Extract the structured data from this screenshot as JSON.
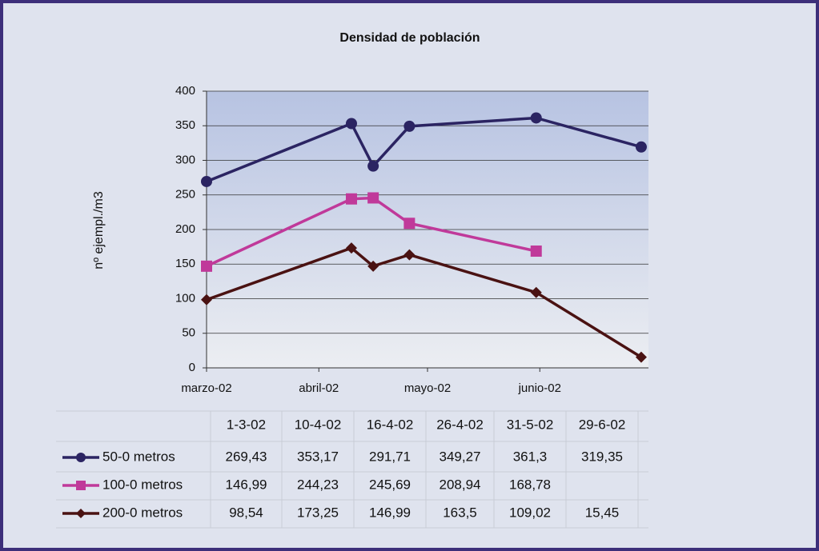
{
  "chart_data": {
    "type": "line",
    "title": "Densidad de población",
    "y_label": "nº ejempl./m3",
    "categories": [
      "1-3-02",
      "10-4-02",
      "16-4-02",
      "26-4-02",
      "31-5-02",
      "29-6-02"
    ],
    "xlim": [
      "1-3-02",
      "1-7-02"
    ],
    "xticks": [
      {
        "value": "1-3-02",
        "label": "marzo-02"
      },
      {
        "value": "1-4-02",
        "label": "abril-02"
      },
      {
        "value": "1-5-02",
        "label": "mayo-02"
      },
      {
        "value": "1-6-02",
        "label": "junio-02"
      }
    ],
    "ylim": [
      0,
      400
    ],
    "yticks": [
      0,
      50,
      100,
      150,
      200,
      250,
      300,
      350,
      400
    ],
    "grid": true,
    "series": [
      {
        "name": "50-0 metros",
        "color": "#2b2462",
        "marker": "circle",
        "values": [
          269.43,
          353.17,
          291.71,
          349.27,
          361.3,
          319.35
        ],
        "value_labels": [
          "269,43",
          "353,17",
          "291,71",
          "349,27",
          "361,3",
          "319,35"
        ]
      },
      {
        "name": "100-0 metros",
        "color": "#c0399a",
        "marker": "square",
        "values": [
          146.99,
          244.23,
          245.69,
          208.94,
          168.78,
          null
        ],
        "value_labels": [
          "146,99",
          "244,23",
          "245,69",
          "208,94",
          "168,78",
          null
        ]
      },
      {
        "name": "200-0 metros",
        "color": "#4a1212",
        "marker": "diamond",
        "values": [
          98.54,
          173.25,
          146.99,
          163.5,
          109.02,
          15.45
        ],
        "value_labels": [
          "98,54",
          "173,25",
          "146,99",
          "163,5",
          "109,02",
          "15,45"
        ]
      }
    ]
  }
}
